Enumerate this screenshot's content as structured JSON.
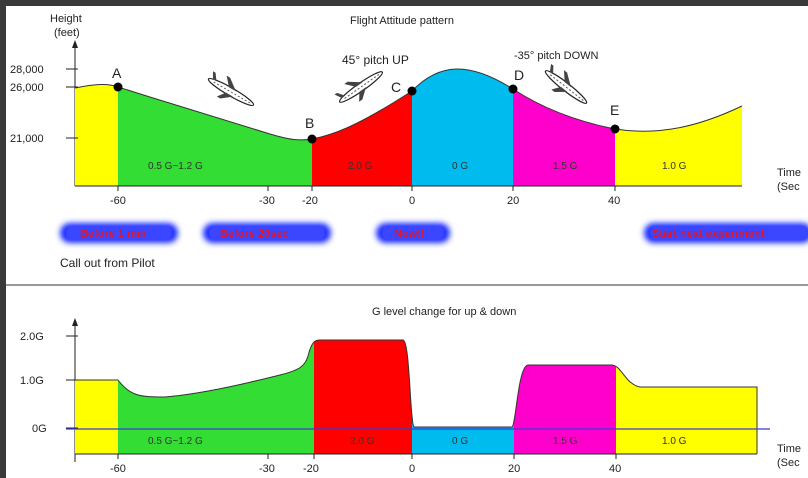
{
  "top_chart": {
    "title": "Flight Attitude pattern",
    "ylabel_line1": "Height",
    "ylabel_line2": "(feet)",
    "y_ticks": [
      "28,000",
      "26,000",
      "21,000"
    ],
    "x_ticks": [
      "-60",
      "-30",
      "-20",
      "0",
      "20",
      "40"
    ],
    "xlabel_line1": "Time",
    "xlabel_line2": "(Sec",
    "point_labels": [
      "A",
      "B",
      "C",
      "D",
      "E"
    ],
    "annotation_up": "45° pitch UP",
    "annotation_down": "-35° pitch DOWN",
    "zones": [
      {
        "label": "",
        "color": "#ffff00"
      },
      {
        "label": "0.5 G~1.2 G",
        "color": "#33dd33"
      },
      {
        "label": "2.0 G",
        "color": "#ff0000"
      },
      {
        "label": "0 G",
        "color": "#00bbee"
      },
      {
        "label": "1.5 G",
        "color": "#ff00cc"
      },
      {
        "label": "1.0 G",
        "color": "#ffff00"
      }
    ]
  },
  "callouts": {
    "pills": [
      "Before 1 min",
      "Before 20sec",
      "Now!!",
      "Start next experiment"
    ],
    "caption": "Call out from Pilot"
  },
  "bottom_chart": {
    "title": "G level change for up & down",
    "y_ticks": [
      "2.0G",
      "1.0G",
      "0G"
    ],
    "x_ticks": [
      "-60",
      "-30",
      "-20",
      "0",
      "20",
      "40"
    ],
    "xlabel_line1": "Time",
    "xlabel_line2": "(Sec",
    "zones": [
      {
        "label": "",
        "color": "#ffff00"
      },
      {
        "label": "0.5 G~1.2 G",
        "color": "#33dd33"
      },
      {
        "label": "2.0 G",
        "color": "#ff0000"
      },
      {
        "label": "0 G",
        "color": "#00bbee"
      },
      {
        "label": "1.5 G",
        "color": "#ff00cc"
      },
      {
        "label": "1.0 G",
        "color": "#ffff00"
      }
    ]
  }
}
